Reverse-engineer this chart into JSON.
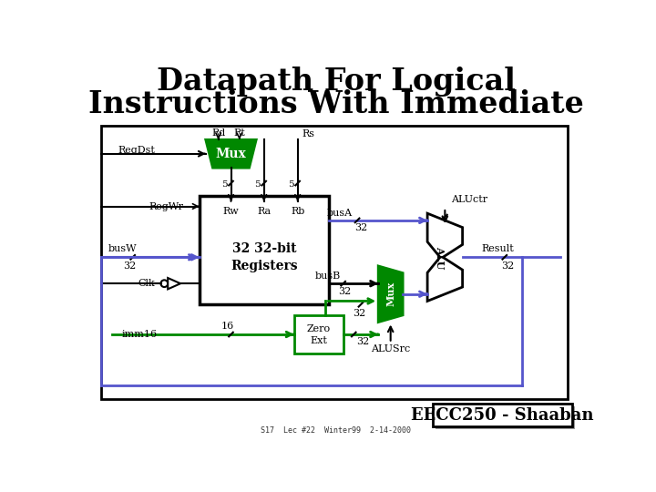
{
  "title_line1": "Datapath For Logical",
  "title_line2": "Instructions With Immediate",
  "bg_color": "#ffffff",
  "border_color": "#000000",
  "green": "#008800",
  "blue": "#5555cc",
  "black": "#000000",
  "footer_text": "EECC250 - Shaaban",
  "footer_sub": "S17  Lec #22  Winter99  2-14-2000"
}
